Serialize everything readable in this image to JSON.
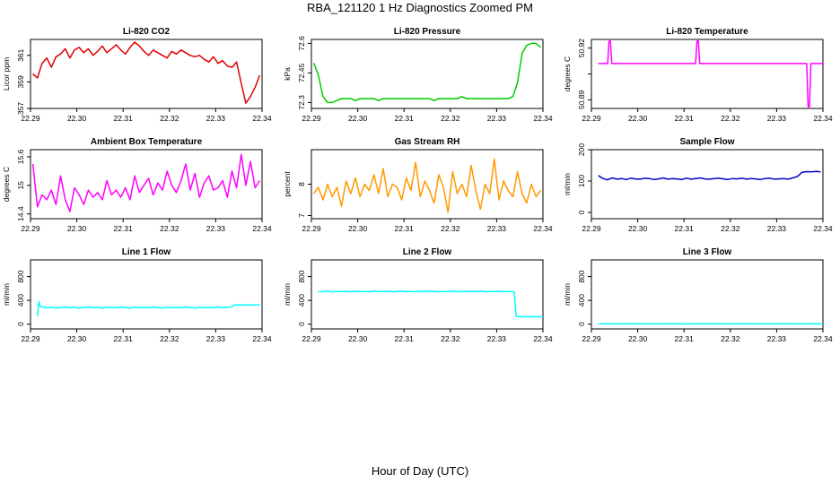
{
  "figure_title": "RBA_121120  1 Hz Diagnostics Zoomed PM",
  "x_label": "Hour of Day (UTC)",
  "colors": {
    "red": "#dd0000",
    "green": "#00cc00",
    "magenta": "#ff00ff",
    "orange": "#ff9900",
    "blue": "#0000cc",
    "cyan": "#00ffff"
  },
  "chart_data": [
    {
      "type": "line",
      "title": "Li-820 CO2",
      "ylabel": "Licor ppm",
      "color": "#dd0000",
      "xlim": [
        22.29,
        22.34
      ],
      "ylim": [
        357,
        362.2
      ],
      "yticks": [
        357,
        359,
        361
      ],
      "xticks": [
        22.29,
        22.3,
        22.31,
        22.32,
        22.33,
        22.34
      ],
      "x": [
        22.2905,
        22.2915,
        22.2925,
        22.2935,
        22.2945,
        22.2955,
        22.2965,
        22.2975,
        22.2985,
        22.2995,
        22.3005,
        22.3015,
        22.3025,
        22.3035,
        22.3045,
        22.3055,
        22.3065,
        22.3075,
        22.3085,
        22.3095,
        22.3105,
        22.3115,
        22.3125,
        22.3135,
        22.3145,
        22.3155,
        22.3165,
        22.3175,
        22.3185,
        22.3195,
        22.3205,
        22.3215,
        22.3225,
        22.3235,
        22.3245,
        22.3255,
        22.3265,
        22.3275,
        22.3285,
        22.3295,
        22.3305,
        22.3315,
        22.3325,
        22.3335,
        22.3345,
        22.3355,
        22.3365,
        22.3375,
        22.3385,
        22.3395
      ],
      "values": [
        359.6,
        359.3,
        360.4,
        360.8,
        360.1,
        360.9,
        361.1,
        361.5,
        360.8,
        361.4,
        361.6,
        361.2,
        361.5,
        361.0,
        361.3,
        361.7,
        361.2,
        361.5,
        361.8,
        361.4,
        361.1,
        361.6,
        362.0,
        361.7,
        361.3,
        361.0,
        361.4,
        361.2,
        361.0,
        360.8,
        361.3,
        361.1,
        361.4,
        361.2,
        361.0,
        360.9,
        361.0,
        360.7,
        360.5,
        360.9,
        360.4,
        360.6,
        360.2,
        360.1,
        360.5,
        358.9,
        357.4,
        357.9,
        358.6,
        359.5
      ]
    },
    {
      "type": "line",
      "title": "Li-820 Pressure",
      "ylabel": "kPa",
      "color": "#00cc00",
      "xlim": [
        22.29,
        22.34
      ],
      "ylim": [
        72.27,
        72.62
      ],
      "yticks": [
        72.3,
        72.45,
        72.6
      ],
      "xticks": [
        22.29,
        22.3,
        22.31,
        22.32,
        22.33,
        22.34
      ],
      "x": [
        22.2905,
        22.2915,
        22.2925,
        22.2935,
        22.2945,
        22.2955,
        22.2965,
        22.2975,
        22.2985,
        22.2995,
        22.3005,
        22.3015,
        22.3025,
        22.3035,
        22.3045,
        22.3055,
        22.3065,
        22.3075,
        22.3085,
        22.3095,
        22.3105,
        22.3115,
        22.3125,
        22.3135,
        22.3145,
        22.3155,
        22.3165,
        22.3175,
        22.3185,
        22.3195,
        22.3205,
        22.3215,
        22.3225,
        22.3235,
        22.3245,
        22.3255,
        22.3265,
        22.3275,
        22.3285,
        22.3295,
        22.3305,
        22.3315,
        22.3325,
        22.3335,
        22.3345,
        22.3355,
        22.3365,
        22.3375,
        22.3385,
        22.3395
      ],
      "values": [
        72.5,
        72.44,
        72.33,
        72.3,
        72.3,
        72.31,
        72.32,
        72.32,
        72.32,
        72.31,
        72.32,
        72.32,
        72.32,
        72.32,
        72.31,
        72.32,
        72.32,
        72.32,
        72.32,
        72.32,
        72.32,
        72.32,
        72.32,
        72.32,
        72.32,
        72.32,
        72.31,
        72.32,
        72.32,
        72.32,
        72.32,
        72.32,
        72.33,
        72.32,
        72.32,
        72.32,
        72.32,
        72.32,
        72.32,
        72.32,
        72.32,
        72.32,
        72.32,
        72.33,
        72.4,
        72.55,
        72.59,
        72.6,
        72.6,
        72.58
      ]
    },
    {
      "type": "line",
      "title": "Li-820 Temperature",
      "ylabel": "degrees C",
      "color": "#ff00ff",
      "xlim": [
        22.29,
        22.34
      ],
      "ylim": [
        50.885,
        50.925
      ],
      "yticks": [
        50.89,
        50.905,
        50.92
      ],
      "ytick_labels": [
        "50.89",
        "",
        "50.92"
      ],
      "xticks": [
        22.29,
        22.3,
        22.31,
        22.32,
        22.33,
        22.34
      ],
      "x": [
        22.2915,
        22.2935,
        22.2938,
        22.2941,
        22.2944,
        22.296,
        22.3125,
        22.3128,
        22.3131,
        22.3134,
        22.315,
        22.3365,
        22.3368,
        22.3371,
        22.3374,
        22.3377,
        22.3385,
        22.34
      ],
      "values": [
        50.911,
        50.911,
        50.924,
        50.924,
        50.911,
        50.911,
        50.911,
        50.924,
        50.924,
        50.911,
        50.911,
        50.911,
        50.886,
        50.886,
        50.911,
        50.911,
        50.911,
        50.911
      ]
    },
    {
      "type": "line",
      "title": "Ambient Box Temperature",
      "ylabel": "degrees C",
      "color": "#ff00ff",
      "xlim": [
        22.29,
        22.34
      ],
      "ylim": [
        14.3,
        15.75
      ],
      "yticks": [
        14.4,
        15.0,
        15.6
      ],
      "xticks": [
        22.29,
        22.3,
        22.31,
        22.32,
        22.33,
        22.34
      ],
      "x": [
        22.2905,
        22.2915,
        22.2925,
        22.2935,
        22.2945,
        22.2955,
        22.2965,
        22.2975,
        22.2985,
        22.2995,
        22.3005,
        22.3015,
        22.3025,
        22.3035,
        22.3045,
        22.3055,
        22.3065,
        22.3075,
        22.3085,
        22.3095,
        22.3105,
        22.3115,
        22.3125,
        22.3135,
        22.3145,
        22.3155,
        22.3165,
        22.3175,
        22.3185,
        22.3195,
        22.3205,
        22.3215,
        22.3225,
        22.3235,
        22.3245,
        22.3255,
        22.3265,
        22.3275,
        22.3285,
        22.3295,
        22.3305,
        22.3315,
        22.3325,
        22.3335,
        22.3345,
        22.3355,
        22.3365,
        22.3375,
        22.3385,
        22.3395
      ],
      "values": [
        15.45,
        14.55,
        14.8,
        14.7,
        14.9,
        14.6,
        15.2,
        14.7,
        14.45,
        14.95,
        14.8,
        14.6,
        14.9,
        14.75,
        14.85,
        14.7,
        15.1,
        14.8,
        14.9,
        14.75,
        14.95,
        14.7,
        15.2,
        14.85,
        15.0,
        15.15,
        14.8,
        15.05,
        14.9,
        15.3,
        15.0,
        14.85,
        15.1,
        15.45,
        14.9,
        15.25,
        14.75,
        15.05,
        15.2,
        14.9,
        14.95,
        15.1,
        14.75,
        15.3,
        14.95,
        15.65,
        15.0,
        15.5,
        14.95,
        15.1
      ]
    },
    {
      "type": "line",
      "title": "Gas Stream RH",
      "ylabel": "percent",
      "color": "#ff9900",
      "xlim": [
        22.29,
        22.34
      ],
      "ylim": [
        6.9,
        9.1
      ],
      "yticks": [
        7.0,
        8.0
      ],
      "xticks": [
        22.29,
        22.3,
        22.31,
        22.32,
        22.33,
        22.34
      ],
      "x": [
        22.2905,
        22.2915,
        22.2925,
        22.2935,
        22.2945,
        22.2955,
        22.2965,
        22.2975,
        22.2985,
        22.2995,
        22.3005,
        22.3015,
        22.3025,
        22.3035,
        22.3045,
        22.3055,
        22.3065,
        22.3075,
        22.3085,
        22.3095,
        22.3105,
        22.3115,
        22.3125,
        22.3135,
        22.3145,
        22.3155,
        22.3165,
        22.3175,
        22.3185,
        22.3195,
        22.3205,
        22.3215,
        22.3225,
        22.3235,
        22.3245,
        22.3255,
        22.3265,
        22.3275,
        22.3285,
        22.3295,
        22.3305,
        22.3315,
        22.3325,
        22.3335,
        22.3345,
        22.3355,
        22.3365,
        22.3375,
        22.3385,
        22.3395
      ],
      "values": [
        7.7,
        7.9,
        7.5,
        8.0,
        7.6,
        7.9,
        7.3,
        8.1,
        7.7,
        8.2,
        7.6,
        8.0,
        7.8,
        8.3,
        7.7,
        8.5,
        7.6,
        8.0,
        7.9,
        7.5,
        8.2,
        7.8,
        8.7,
        7.6,
        8.1,
        7.8,
        7.4,
        8.3,
        7.9,
        7.1,
        8.4,
        7.7,
        8.0,
        7.6,
        8.6,
        7.8,
        7.2,
        8.0,
        7.7,
        8.8,
        7.5,
        8.1,
        7.8,
        7.6,
        8.4,
        7.7,
        7.4,
        8.0,
        7.6,
        7.8
      ]
    },
    {
      "type": "line",
      "title": "Sample Flow",
      "ylabel": "ml/min",
      "color": "#0000cc",
      "xlim": [
        22.29,
        22.34
      ],
      "ylim": [
        -20,
        200
      ],
      "yticks": [
        0,
        100,
        200
      ],
      "xticks": [
        22.29,
        22.3,
        22.31,
        22.32,
        22.33,
        22.34
      ],
      "x": [
        22.2915,
        22.2925,
        22.2935,
        22.2945,
        22.2955,
        22.2965,
        22.2975,
        22.2985,
        22.2995,
        22.3005,
        22.3015,
        22.3025,
        22.3035,
        22.3045,
        22.3055,
        22.3065,
        22.3075,
        22.3085,
        22.3095,
        22.3105,
        22.3115,
        22.3125,
        22.3135,
        22.3145,
        22.3155,
        22.3165,
        22.3175,
        22.3185,
        22.3195,
        22.3205,
        22.3215,
        22.3225,
        22.3235,
        22.3245,
        22.3255,
        22.3265,
        22.3275,
        22.3285,
        22.3295,
        22.3305,
        22.3315,
        22.3325,
        22.3335,
        22.3345,
        22.3355,
        22.3365,
        22.3375,
        22.3385,
        22.3395
      ],
      "values": [
        118,
        108,
        104,
        110,
        106,
        108,
        105,
        109,
        107,
        106,
        109,
        108,
        105,
        107,
        110,
        106,
        108,
        107,
        105,
        109,
        106,
        108,
        110,
        107,
        106,
        108,
        109,
        107,
        105,
        108,
        107,
        109,
        106,
        108,
        107,
        105,
        108,
        109,
        106,
        107,
        108,
        106,
        110,
        115,
        128,
        130,
        129,
        131,
        129
      ]
    },
    {
      "type": "line",
      "title": "Line 1 Flow",
      "ylabel": "ml/min",
      "color": "#00ffff",
      "xlim": [
        22.29,
        22.34
      ],
      "ylim": [
        -80,
        1080
      ],
      "yticks": [
        0,
        400,
        800
      ],
      "xticks": [
        22.29,
        22.3,
        22.31,
        22.32,
        22.33,
        22.34
      ],
      "x": [
        22.2915,
        22.2918,
        22.2921,
        22.2925,
        22.2935,
        22.2945,
        22.2955,
        22.2965,
        22.2975,
        22.2985,
        22.2995,
        22.3005,
        22.3015,
        22.3025,
        22.3035,
        22.3045,
        22.3055,
        22.3065,
        22.3075,
        22.3085,
        22.3095,
        22.3105,
        22.3115,
        22.3125,
        22.3135,
        22.3145,
        22.3155,
        22.3165,
        22.3175,
        22.3185,
        22.3195,
        22.3205,
        22.3215,
        22.3225,
        22.3235,
        22.3245,
        22.3255,
        22.3265,
        22.3275,
        22.3285,
        22.3295,
        22.3305,
        22.3315,
        22.3325,
        22.3335,
        22.334,
        22.3345,
        22.3355,
        22.3365,
        22.3375,
        22.3385,
        22.3395
      ],
      "values": [
        130,
        380,
        300,
        290,
        275,
        285,
        270,
        280,
        290,
        275,
        285,
        270,
        280,
        290,
        278,
        283,
        270,
        285,
        280,
        275,
        290,
        280,
        270,
        285,
        278,
        283,
        275,
        290,
        280,
        270,
        285,
        278,
        283,
        275,
        290,
        280,
        270,
        285,
        278,
        283,
        275,
        290,
        280,
        285,
        290,
        320,
        325,
        325,
        325,
        325,
        325,
        325
      ]
    },
    {
      "type": "line",
      "title": "Line 2 Flow",
      "ylabel": "ml/min",
      "color": "#00ffff",
      "xlim": [
        22.29,
        22.34
      ],
      "ylim": [
        -80,
        1080
      ],
      "yticks": [
        0,
        400,
        800
      ],
      "xticks": [
        22.29,
        22.3,
        22.31,
        22.32,
        22.33,
        22.34
      ],
      "x": [
        22.2915,
        22.2925,
        22.2935,
        22.2945,
        22.2955,
        22.2965,
        22.2975,
        22.2985,
        22.2995,
        22.3005,
        22.3015,
        22.3025,
        22.3035,
        22.3045,
        22.3055,
        22.3065,
        22.3075,
        22.3085,
        22.3095,
        22.3105,
        22.3115,
        22.3125,
        22.3135,
        22.3145,
        22.3155,
        22.3165,
        22.3175,
        22.3185,
        22.3195,
        22.3205,
        22.3215,
        22.3225,
        22.3235,
        22.3245,
        22.3255,
        22.3265,
        22.3275,
        22.3285,
        22.3295,
        22.3305,
        22.3315,
        22.3325,
        22.3335,
        22.3338,
        22.3342,
        22.3355,
        22.337,
        22.3385,
        22.34
      ],
      "values": [
        550,
        545,
        555,
        540,
        550,
        548,
        552,
        545,
        555,
        548,
        550,
        545,
        555,
        550,
        548,
        552,
        545,
        550,
        555,
        548,
        550,
        545,
        552,
        548,
        555,
        550,
        545,
        550,
        548,
        555,
        550,
        545,
        552,
        548,
        550,
        555,
        545,
        550,
        548,
        552,
        545,
        550,
        550,
        540,
        130,
        125,
        125,
        125,
        125
      ]
    },
    {
      "type": "line",
      "title": "Line 3 Flow",
      "ylabel": "ml/min",
      "color": "#00ffff",
      "xlim": [
        22.29,
        22.34
      ],
      "ylim": [
        -80,
        1080
      ],
      "yticks": [
        0,
        400,
        800
      ],
      "xticks": [
        22.29,
        22.3,
        22.31,
        22.32,
        22.33,
        22.34
      ],
      "x": [
        22.2915,
        22.295,
        22.299,
        22.303,
        22.307,
        22.311,
        22.315,
        22.319,
        22.323,
        22.327,
        22.331,
        22.335,
        22.34
      ],
      "values": [
        8,
        5,
        7,
        4,
        6,
        5,
        7,
        4,
        6,
        5,
        7,
        5,
        6
      ]
    }
  ]
}
